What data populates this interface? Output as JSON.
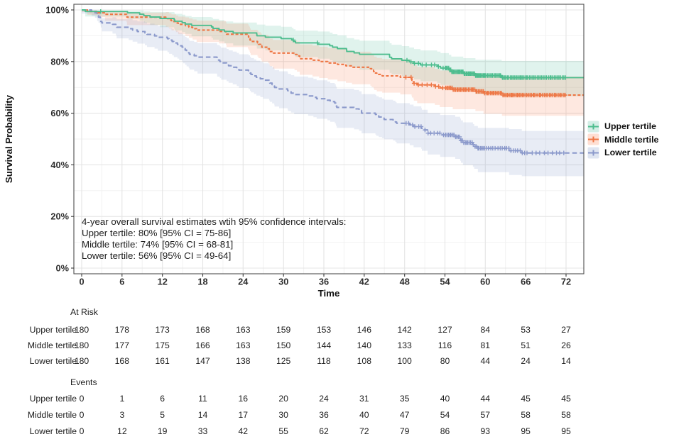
{
  "chart_data": {
    "type": "line",
    "variant": "kaplan-meier-survival",
    "title": "",
    "xlabel": "Time",
    "ylabel": "Survival Probability",
    "xlim": [
      0,
      74.7
    ],
    "xticks": [
      0,
      6,
      12,
      18,
      24,
      30,
      36,
      42,
      48,
      54,
      60,
      66,
      72
    ],
    "ylim": [
      0,
      100
    ],
    "yticks": [
      0,
      20,
      40,
      60,
      80,
      100
    ],
    "ytick_labels": [
      "0%",
      "20%",
      "40%",
      "60%",
      "80%",
      "100%"
    ],
    "grid": "major+minor",
    "legend_position": "right",
    "series": [
      {
        "name": "Upper tertile",
        "line_color": "#4dbd8e",
        "fill_color": "#66c2a5",
        "dash": "solid",
        "times": [
          0,
          6,
          12,
          18,
          24,
          30,
          36,
          42,
          48,
          54,
          60,
          66,
          72
        ],
        "survival": [
          100,
          99.4,
          96.7,
          94.0,
          91.1,
          88.9,
          86.7,
          82.8,
          80.5,
          77.5,
          74.6,
          73.8,
          73.8
        ],
        "ci_lower": [
          100,
          98.2,
          94.1,
          90.5,
          86.9,
          84.3,
          81.7,
          77.5,
          75.0,
          71.7,
          68.4,
          67.0,
          66.6
        ],
        "ci_upper": [
          100,
          100,
          99.3,
          97.5,
          95.3,
          93.5,
          91.7,
          88.1,
          86.0,
          83.3,
          80.8,
          80.6,
          81.0
        ],
        "events_per_interval": [
          1,
          5,
          5,
          5,
          4,
          4,
          7,
          4,
          5,
          4,
          1,
          0
        ],
        "censored_per_interval": [
          1,
          0,
          0,
          0,
          0,
          2,
          0,
          0,
          10,
          39,
          30,
          26
        ]
      },
      {
        "name": "Middle tertile",
        "line_color": "#ee7644",
        "fill_color": "#fc8d62",
        "dash": "4,2.6",
        "times": [
          0,
          6,
          12,
          18,
          24,
          30,
          36,
          42,
          48,
          54,
          60,
          66,
          72
        ],
        "survival": [
          100,
          98.3,
          97.2,
          92.2,
          90.6,
          83.3,
          80.0,
          77.8,
          73.9,
          69.8,
          67.8,
          67.0,
          67.0
        ],
        "ci_lower": [
          100,
          96.4,
          94.8,
          88.3,
          86.3,
          77.9,
          74.2,
          71.7,
          68.0,
          63.1,
          60.8,
          59.4,
          59.0
        ],
        "ci_upper": [
          100,
          100,
          99.6,
          96.1,
          94.9,
          88.7,
          85.8,
          83.9,
          81.0,
          76.5,
          74.8,
          74.6,
          75.0
        ],
        "events_per_interval": [
          3,
          2,
          9,
          3,
          13,
          6,
          4,
          7,
          7,
          3,
          1,
          0
        ],
        "censored_per_interval": [
          0,
          0,
          0,
          0,
          0,
          0,
          0,
          0,
          10,
          32,
          29,
          25
        ]
      },
      {
        "name": "Lower tertile",
        "line_color": "#8b99cb",
        "fill_color": "#8da0cb",
        "dash": "6.5,4",
        "times": [
          0,
          6,
          12,
          18,
          24,
          30,
          36,
          42,
          48,
          54,
          60,
          66,
          72
        ],
        "survival": [
          100,
          93.3,
          89.4,
          81.7,
          76.7,
          69.4,
          65.6,
          60.0,
          56.1,
          51.6,
          46.4,
          44.6,
          44.6
        ],
        "ci_lower": [
          100,
          89.7,
          84.9,
          76.1,
          70.5,
          62.5,
          58.4,
          52.6,
          49.0,
          43.9,
          38.4,
          36.0,
          35.6
        ],
        "ci_upper": [
          100,
          96.9,
          93.9,
          87.3,
          82.9,
          76.3,
          72.8,
          67.4,
          64.0,
          59.3,
          54.4,
          53.2,
          53.6
        ],
        "events_per_interval": [
          12,
          7,
          14,
          9,
          13,
          7,
          10,
          8,
          7,
          7,
          2,
          0
        ],
        "censored_per_interval": [
          0,
          0,
          0,
          0,
          0,
          0,
          0,
          0,
          13,
          29,
          18,
          10
        ]
      }
    ],
    "annotation": {
      "lines": [
        "4-year overall survival estimates wtih 95% confidence intervals:",
        "Upper tertile: 80% [95% CI = 75-86]",
        "Middle tertile: 74% [95% CI = 68-81]",
        "Lower tertile: 56% [95% CI = 49-64]"
      ]
    }
  },
  "legend": {
    "items": [
      {
        "label": "Upper tertile",
        "line_color": "#4dbd8e",
        "fill_color": "#66c2a5"
      },
      {
        "label": "Middle tertile",
        "line_color": "#ee7644",
        "fill_color": "#fc8d62"
      },
      {
        "label": "Lower tertile",
        "line_color": "#8b99cb",
        "fill_color": "#8da0cb"
      }
    ]
  },
  "risk_table": {
    "time_points": [
      0,
      6,
      12,
      18,
      24,
      30,
      36,
      42,
      48,
      54,
      60,
      66,
      72
    ],
    "sections": [
      {
        "header": "At Risk",
        "rows": [
          {
            "label": "Upper tertile",
            "values": [
              180,
              178,
              173,
              168,
              163,
              159,
              153,
              146,
              142,
              127,
              84,
              53,
              27
            ]
          },
          {
            "label": "Middle tertile",
            "values": [
              180,
              177,
              175,
              166,
              163,
              150,
              144,
              140,
              133,
              116,
              81,
              51,
              26
            ]
          },
          {
            "label": "Lower tertile",
            "values": [
              180,
              168,
              161,
              147,
              138,
              125,
              118,
              108,
              100,
              80,
              44,
              24,
              14
            ]
          }
        ]
      },
      {
        "header": "Events",
        "rows": [
          {
            "label": "Upper tertile",
            "values": [
              0,
              1,
              6,
              11,
              16,
              20,
              24,
              31,
              35,
              40,
              44,
              45,
              45
            ]
          },
          {
            "label": "Middle tertile",
            "values": [
              0,
              3,
              5,
              14,
              17,
              30,
              36,
              40,
              47,
              54,
              57,
              58,
              58
            ]
          },
          {
            "label": "Lower tertile",
            "values": [
              0,
              12,
              19,
              33,
              42,
              55,
              62,
              72,
              79,
              86,
              93,
              95,
              95
            ]
          }
        ]
      }
    ]
  },
  "style_colors": {
    "grid_major": "#e4e4e4",
    "grid_minor": "#f2f2f2",
    "panel_border": "#4f4f4f",
    "tick_text": "#2e2e2e"
  }
}
